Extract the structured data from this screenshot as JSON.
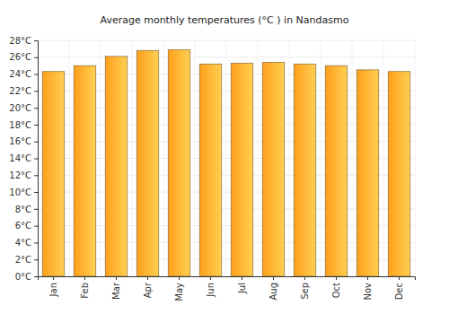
{
  "chart_data": {
    "type": "bar",
    "title": "Average monthly temperatures (°C ) in Nandasmo",
    "categories": [
      "Jan",
      "Feb",
      "Mar",
      "Apr",
      "May",
      "Jun",
      "Jul",
      "Aug",
      "Sep",
      "Oct",
      "Nov",
      "Dec"
    ],
    "values": [
      24.3,
      25.0,
      26.1,
      26.8,
      26.9,
      25.2,
      25.3,
      25.4,
      25.2,
      25.0,
      24.5,
      24.3
    ],
    "color": "#ff9f1a",
    "ylim": [
      0,
      28
    ],
    "yticks": [
      {
        "value": 0,
        "label": "0°C"
      },
      {
        "value": 2,
        "label": "2°C"
      },
      {
        "value": 4,
        "label": "4°C"
      },
      {
        "value": 6,
        "label": "6°C"
      },
      {
        "value": 8,
        "label": "8°C"
      },
      {
        "value": 10,
        "label": "10°C"
      },
      {
        "value": 12,
        "label": "12°C"
      },
      {
        "value": 14,
        "label": "14°C"
      },
      {
        "value": 16,
        "label": "16°C"
      },
      {
        "value": 18,
        "label": "18°C"
      },
      {
        "value": 20,
        "label": "20°C"
      },
      {
        "value": 22,
        "label": "22°C"
      },
      {
        "value": 24,
        "label": "24°C"
      },
      {
        "value": 26,
        "label": "26°C"
      },
      {
        "value": 28,
        "label": "28°C"
      }
    ],
    "grid": true
  }
}
